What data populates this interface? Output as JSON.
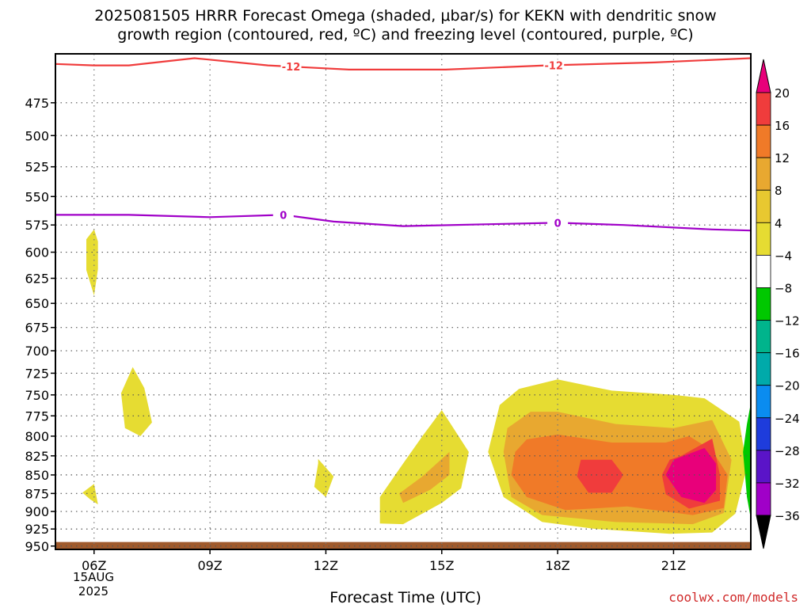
{
  "title": {
    "line1": "2025081505 HRRR Forecast Omega (shaded, μbar/s) for KEKN with dendritic snow",
    "line2": "growth region (contoured, red, ºC) and freezing level (contoured, purple, ºC)"
  },
  "xlabel": "Forecast Time (UTC)",
  "credit": "coolwx.com/models",
  "date_label": {
    "day": "15AUG",
    "year": "2025"
  },
  "chart_data": {
    "type": "heatmap",
    "x_ticks": [
      "06Z",
      "09Z",
      "12Z",
      "15Z",
      "18Z",
      "21Z"
    ],
    "x_tick_hours": [
      6,
      9,
      12,
      15,
      18,
      21
    ],
    "xlim": [
      5,
      23
    ],
    "y_ticks": [
      475,
      500,
      525,
      550,
      575,
      600,
      625,
      650,
      675,
      700,
      725,
      750,
      775,
      800,
      825,
      850,
      875,
      900,
      925,
      950
    ],
    "ylim": [
      440,
      955
    ],
    "y_scale": "log",
    "grid": true,
    "colorbar": {
      "ticks": [
        20,
        16,
        12,
        8,
        4,
        -4,
        -8,
        -12,
        -16,
        -20,
        -24,
        -28,
        -32,
        -36
      ],
      "colors": [
        "#e8007a",
        "#f03c3c",
        "#f07a28",
        "#e8a830",
        "#e8c830",
        "#e6dc32",
        "#ffffff",
        "#00c800",
        "#00b48c",
        "#00aaaa",
        "#0a8cf0",
        "#1e3cdc",
        "#5a14c8",
        "#a000c8",
        "#a0a0a0",
        "#000000"
      ]
    },
    "contours": [
      {
        "name": "-12",
        "color": "#f03c3c",
        "labels_at": [
          11.1,
          17.9
        ],
        "points": [
          [
            5,
            447
          ],
          [
            6,
            448
          ],
          [
            6.9,
            448
          ],
          [
            8.6,
            443
          ],
          [
            10.5,
            448
          ],
          [
            12.6,
            451
          ],
          [
            15.1,
            451
          ],
          [
            17.7,
            448
          ],
          [
            20.5,
            446
          ],
          [
            23,
            443
          ]
        ]
      },
      {
        "name": "0",
        "color": "#a000c8",
        "labels_at": [
          10.9,
          18
        ],
        "points": [
          [
            5,
            566
          ],
          [
            6.9,
            566
          ],
          [
            9,
            568
          ],
          [
            10.9,
            566
          ],
          [
            12.2,
            572
          ],
          [
            14,
            576
          ],
          [
            16.6,
            574
          ],
          [
            18,
            573
          ],
          [
            19.7,
            575
          ],
          [
            22,
            579
          ],
          [
            23,
            580
          ]
        ]
      }
    ],
    "shaded_regions": [
      {
        "level": "4-8",
        "color": "#e6dc32",
        "points": [
          [
            6,
            579
          ],
          [
            6.1,
            590
          ],
          [
            6.1,
            616
          ],
          [
            6.0,
            642
          ],
          [
            5.8,
            617
          ],
          [
            5.8,
            588
          ]
        ]
      },
      {
        "level": "4-8",
        "color": "#e6dc32",
        "points": [
          [
            7.0,
            718
          ],
          [
            7.3,
            742
          ],
          [
            7.5,
            783
          ],
          [
            7.2,
            800
          ],
          [
            6.8,
            790
          ],
          [
            6.7,
            748
          ]
        ]
      },
      {
        "level": "4-8",
        "color": "#e6dc32",
        "points": [
          [
            6.0,
            862
          ],
          [
            6.1,
            890
          ],
          [
            5.9,
            883
          ],
          [
            5.7,
            874
          ]
        ]
      },
      {
        "level": "4-8",
        "color": "#e6dc32",
        "points": [
          [
            11.8,
            829
          ],
          [
            12.2,
            852
          ],
          [
            12.0,
            880
          ],
          [
            11.7,
            866
          ],
          [
            11.8,
            835
          ]
        ]
      },
      {
        "level": "4-8",
        "color": "#e6dc32",
        "points": [
          [
            15.0,
            768
          ],
          [
            15.7,
            820
          ],
          [
            15.5,
            868
          ],
          [
            15.0,
            888
          ],
          [
            14.0,
            918
          ],
          [
            13.4,
            917
          ],
          [
            13.4,
            880
          ],
          [
            14.0,
            835
          ],
          [
            14.5,
            800
          ]
        ]
      },
      {
        "level": "8-12",
        "color": "#e8a830",
        "points": [
          [
            15.2,
            820
          ],
          [
            15.2,
            850
          ],
          [
            14.7,
            870
          ],
          [
            14.0,
            888
          ],
          [
            13.9,
            875
          ],
          [
            14.5,
            852
          ]
        ]
      },
      {
        "level": "4-8",
        "color": "#e6dc32",
        "points": [
          [
            17.0,
            743
          ],
          [
            18.0,
            732
          ],
          [
            19.4,
            745
          ],
          [
            21.0,
            750
          ],
          [
            21.8,
            754
          ],
          [
            22.7,
            782
          ],
          [
            22.9,
            840
          ],
          [
            22.6,
            903
          ],
          [
            22.0,
            930
          ],
          [
            20.9,
            932
          ],
          [
            19.0,
            925
          ],
          [
            17.6,
            915
          ],
          [
            16.6,
            880
          ],
          [
            16.2,
            820
          ],
          [
            16.5,
            762
          ]
        ]
      },
      {
        "level": "8-12",
        "color": "#e8a830",
        "points": [
          [
            17.3,
            770
          ],
          [
            18.0,
            770
          ],
          [
            19.5,
            785
          ],
          [
            21.0,
            790
          ],
          [
            22.0,
            780
          ],
          [
            22.5,
            830
          ],
          [
            22.3,
            902
          ],
          [
            21.5,
            918
          ],
          [
            19.5,
            915
          ],
          [
            17.6,
            905
          ],
          [
            16.8,
            880
          ],
          [
            16.6,
            820
          ],
          [
            16.7,
            790
          ]
        ]
      },
      {
        "level": "12-16",
        "color": "#f07a28",
        "points": [
          [
            17.2,
            804
          ],
          [
            18.0,
            798
          ],
          [
            19.4,
            808
          ],
          [
            20.8,
            808
          ],
          [
            21.4,
            800
          ],
          [
            22.0,
            818
          ],
          [
            22.4,
            850
          ],
          [
            22.3,
            895
          ],
          [
            21.5,
            905
          ],
          [
            19.8,
            893
          ],
          [
            18.2,
            898
          ],
          [
            17.2,
            880
          ],
          [
            16.8,
            850
          ],
          [
            16.9,
            820
          ]
        ]
      },
      {
        "level": "16-20",
        "color": "#f03c3c",
        "points": [
          [
            18.6,
            830
          ],
          [
            19.4,
            830
          ],
          [
            19.7,
            850
          ],
          [
            19.4,
            874
          ],
          [
            18.8,
            874
          ],
          [
            18.5,
            852
          ]
        ]
      },
      {
        "level": "16-20",
        "color": "#f03c3c",
        "points": [
          [
            21.2,
            825
          ],
          [
            22.0,
            803
          ],
          [
            22.2,
            850
          ],
          [
            22.2,
            885
          ],
          [
            21.4,
            896
          ],
          [
            20.8,
            876
          ],
          [
            20.7,
            850
          ],
          [
            20.9,
            830
          ]
        ]
      },
      {
        "level": "20+",
        "color": "#e8007a",
        "points": [
          [
            21.8,
            815
          ],
          [
            22.1,
            835
          ],
          [
            22.1,
            870
          ],
          [
            21.8,
            888
          ],
          [
            21.2,
            880
          ],
          [
            20.8,
            850
          ],
          [
            21.0,
            830
          ]
        ]
      },
      {
        "level": "-8 to -4",
        "color": "#00c800",
        "points": [
          [
            23.0,
            760
          ],
          [
            23.0,
            910
          ],
          [
            22.9,
            880
          ],
          [
            22.8,
            820
          ],
          [
            22.9,
            785
          ]
        ]
      },
      {
        "level": "terrain",
        "color": "#a05a2c",
        "points": [
          [
            5.0,
            944
          ],
          [
            23.0,
            944
          ],
          [
            23.0,
            955
          ],
          [
            5.0,
            955
          ]
        ]
      }
    ]
  }
}
